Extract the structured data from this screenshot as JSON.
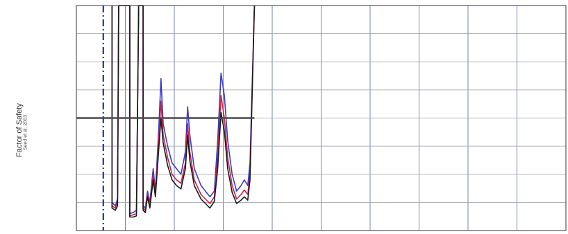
{
  "chart_data": {
    "type": "line",
    "ylabel": "Factor of Safety",
    "ylabel_note": "Seed et al. 2003",
    "grid": true,
    "x_gridlines": 10,
    "y_gridlines": 7,
    "threshold_line": {
      "value": 1.0
    },
    "reference_line": {
      "style": "dash-dot",
      "color": "#2233aa"
    },
    "ylim": [
      0,
      2.0
    ],
    "series": [
      {
        "color": "#3a3acc",
        "points": [
          [
            0.16,
            2.2
          ],
          [
            0.16,
            0.25
          ],
          [
            0.175,
            0.22
          ],
          [
            0.185,
            0.28
          ],
          [
            0.19,
            2.2
          ],
          [
            0.24,
            2.2
          ],
          [
            0.24,
            0.15
          ],
          [
            0.255,
            0.16
          ],
          [
            0.27,
            0.18
          ],
          [
            0.28,
            2.2
          ],
          [
            0.3,
            2.2
          ],
          [
            0.3,
            0.22
          ],
          [
            0.31,
            0.2
          ],
          [
            0.32,
            0.35
          ],
          [
            0.33,
            0.25
          ],
          [
            0.345,
            0.55
          ],
          [
            0.355,
            0.35
          ],
          [
            0.37,
            0.9
          ],
          [
            0.38,
            1.35
          ],
          [
            0.39,
            0.95
          ],
          [
            0.41,
            0.75
          ],
          [
            0.43,
            0.6
          ],
          [
            0.45,
            0.55
          ],
          [
            0.47,
            0.5
          ],
          [
            0.49,
            0.7
          ],
          [
            0.5,
            1.1
          ],
          [
            0.51,
            0.85
          ],
          [
            0.53,
            0.55
          ],
          [
            0.56,
            0.4
          ],
          [
            0.58,
            0.35
          ],
          [
            0.6,
            0.3
          ],
          [
            0.62,
            0.35
          ],
          [
            0.635,
            0.8
          ],
          [
            0.65,
            1.4
          ],
          [
            0.665,
            1.2
          ],
          [
            0.68,
            0.8
          ],
          [
            0.7,
            0.5
          ],
          [
            0.72,
            0.35
          ],
          [
            0.74,
            0.4
          ],
          [
            0.755,
            0.45
          ],
          [
            0.77,
            0.4
          ],
          [
            0.78,
            0.6
          ],
          [
            0.8,
            2.2
          ]
        ]
      },
      {
        "color": "#cc2244",
        "points": [
          [
            0.16,
            2.2
          ],
          [
            0.16,
            0.22
          ],
          [
            0.175,
            0.2
          ],
          [
            0.185,
            0.25
          ],
          [
            0.19,
            2.2
          ],
          [
            0.24,
            2.2
          ],
          [
            0.24,
            0.13
          ],
          [
            0.255,
            0.14
          ],
          [
            0.27,
            0.15
          ],
          [
            0.28,
            2.2
          ],
          [
            0.3,
            2.2
          ],
          [
            0.3,
            0.2
          ],
          [
            0.31,
            0.18
          ],
          [
            0.32,
            0.32
          ],
          [
            0.33,
            0.22
          ],
          [
            0.345,
            0.5
          ],
          [
            0.355,
            0.32
          ],
          [
            0.37,
            0.8
          ],
          [
            0.38,
            1.15
          ],
          [
            0.39,
            0.85
          ],
          [
            0.41,
            0.65
          ],
          [
            0.43,
            0.5
          ],
          [
            0.45,
            0.45
          ],
          [
            0.47,
            0.42
          ],
          [
            0.49,
            0.6
          ],
          [
            0.5,
            0.95
          ],
          [
            0.51,
            0.7
          ],
          [
            0.53,
            0.45
          ],
          [
            0.56,
            0.32
          ],
          [
            0.58,
            0.28
          ],
          [
            0.6,
            0.24
          ],
          [
            0.62,
            0.3
          ],
          [
            0.635,
            0.65
          ],
          [
            0.65,
            1.2
          ],
          [
            0.665,
            1.0
          ],
          [
            0.68,
            0.65
          ],
          [
            0.7,
            0.4
          ],
          [
            0.72,
            0.28
          ],
          [
            0.74,
            0.32
          ],
          [
            0.755,
            0.36
          ],
          [
            0.77,
            0.32
          ],
          [
            0.78,
            0.5
          ],
          [
            0.8,
            2.2
          ]
        ]
      },
      {
        "color": "#1a1a1a",
        "points": [
          [
            0.16,
            2.2
          ],
          [
            0.16,
            0.2
          ],
          [
            0.175,
            0.18
          ],
          [
            0.185,
            0.22
          ],
          [
            0.19,
            2.2
          ],
          [
            0.24,
            2.2
          ],
          [
            0.24,
            0.12
          ],
          [
            0.255,
            0.12
          ],
          [
            0.27,
            0.13
          ],
          [
            0.28,
            2.2
          ],
          [
            0.3,
            2.2
          ],
          [
            0.3,
            0.18
          ],
          [
            0.31,
            0.16
          ],
          [
            0.32,
            0.3
          ],
          [
            0.33,
            0.2
          ],
          [
            0.345,
            0.45
          ],
          [
            0.355,
            0.3
          ],
          [
            0.37,
            0.72
          ],
          [
            0.38,
            1.0
          ],
          [
            0.39,
            0.78
          ],
          [
            0.41,
            0.58
          ],
          [
            0.43,
            0.45
          ],
          [
            0.45,
            0.4
          ],
          [
            0.47,
            0.37
          ],
          [
            0.49,
            0.55
          ],
          [
            0.5,
            0.85
          ],
          [
            0.51,
            0.62
          ],
          [
            0.53,
            0.4
          ],
          [
            0.56,
            0.28
          ],
          [
            0.58,
            0.24
          ],
          [
            0.6,
            0.2
          ],
          [
            0.62,
            0.26
          ],
          [
            0.635,
            0.55
          ],
          [
            0.65,
            1.05
          ],
          [
            0.665,
            0.88
          ],
          [
            0.68,
            0.55
          ],
          [
            0.7,
            0.34
          ],
          [
            0.72,
            0.24
          ],
          [
            0.74,
            0.27
          ],
          [
            0.755,
            0.3
          ],
          [
            0.77,
            0.27
          ],
          [
            0.78,
            0.45
          ],
          [
            0.8,
            2.2
          ]
        ]
      }
    ],
    "xlim": [
      0,
      2.2
    ]
  }
}
